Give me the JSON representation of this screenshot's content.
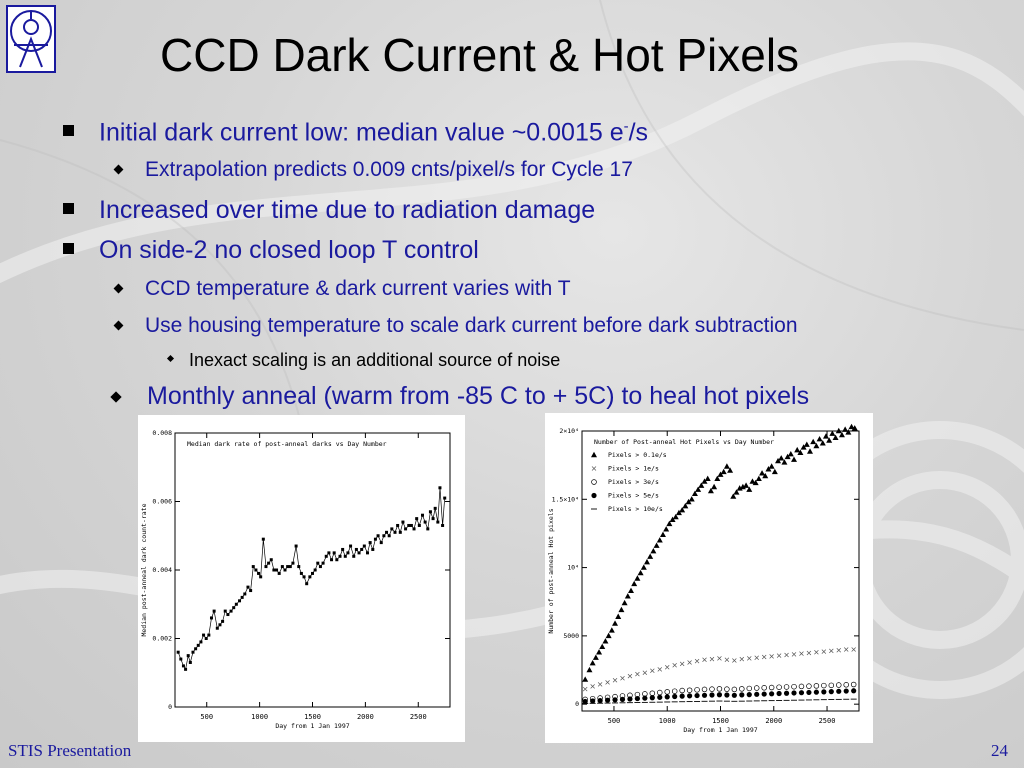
{
  "slide": {
    "title": "CCD Dark Current & Hot Pixels",
    "footer_left": "STIS Presentation",
    "page_number": "24",
    "accent_color": "#1a1a9e"
  },
  "bullets": [
    {
      "level": 1,
      "pre": "Initial dark current low: median value ~0.0015 e",
      "sup": "-",
      "post": "/s"
    },
    {
      "level": 2,
      "text": "Extrapolation predicts 0.009 cnts/pixel/s for Cycle 17"
    },
    {
      "level": 1,
      "text": "Increased over time due to radiation damage"
    },
    {
      "level": 1,
      "text": "On side-2  no closed loop T control"
    },
    {
      "level": 2,
      "text": "CCD temperature & dark current varies with T"
    },
    {
      "level": 2,
      "text": "Use housing temperature to scale dark current before dark subtraction"
    },
    {
      "level": 3,
      "text": "Inexact scaling is an additional source of noise"
    },
    {
      "level": 2,
      "text": " Monthly anneal (warm from -85 C to + 5C) to heal hot pixels"
    }
  ],
  "chart_data": [
    {
      "type": "line",
      "title": "Median dark rate of post-anneal darks vs Day Number",
      "xlabel": "Day from 1 Jan 1997",
      "ylabel": "Median post-anneal dark count-rate",
      "xlim": [
        200,
        2800
      ],
      "ylim": [
        0,
        0.008
      ],
      "xticks": [
        500,
        1000,
        1500,
        2000,
        2500
      ],
      "yticks": [
        0,
        0.002,
        0.004,
        0.006,
        0.008
      ],
      "ytick_labels": [
        "0",
        "0.002",
        "0.004",
        "0.006",
        "0.008"
      ],
      "series": [
        {
          "x": [
            230,
            255,
            280,
            300,
            325,
            345,
            370,
            395,
            420,
            445,
            470,
            495,
            520,
            545,
            570,
            600,
            625,
            650,
            675,
            700,
            730,
            755,
            780,
            810,
            835,
            860,
            890,
            915,
            940,
            965,
            990,
            1010,
            1035,
            1060,
            1085,
            1110,
            1135,
            1160,
            1185,
            1215,
            1240,
            1265,
            1290,
            1315,
            1345,
            1370,
            1395,
            1420,
            1445,
            1475,
            1500,
            1525,
            1550,
            1575,
            1600,
            1630,
            1655,
            1680,
            1705,
            1730,
            1760,
            1785,
            1810,
            1835,
            1860,
            1890,
            1915,
            1940,
            1965,
            1990,
            2020,
            2045,
            2070,
            2095,
            2120,
            2150,
            2175,
            2200,
            2225,
            2250,
            2280,
            2305,
            2330,
            2355,
            2380,
            2410,
            2435,
            2460,
            2485,
            2510,
            2540,
            2565,
            2590,
            2615,
            2640,
            2660,
            2685,
            2705,
            2730,
            2750
          ],
          "y": [
            0.0016,
            0.0014,
            0.0012,
            0.0011,
            0.0015,
            0.0013,
            0.0016,
            0.0017,
            0.0018,
            0.0019,
            0.0021,
            0.002,
            0.0021,
            0.0026,
            0.0028,
            0.0023,
            0.0024,
            0.0025,
            0.0028,
            0.0027,
            0.0028,
            0.0029,
            0.003,
            0.0031,
            0.0032,
            0.0033,
            0.0035,
            0.0034,
            0.0041,
            0.004,
            0.0039,
            0.0038,
            0.0049,
            0.0041,
            0.0042,
            0.0043,
            0.004,
            0.004,
            0.0039,
            0.0041,
            0.004,
            0.0041,
            0.0041,
            0.0042,
            0.0047,
            0.0041,
            0.0039,
            0.0038,
            0.0036,
            0.0038,
            0.0039,
            0.004,
            0.0042,
            0.0041,
            0.0042,
            0.0044,
            0.0045,
            0.0043,
            0.0045,
            0.0043,
            0.0044,
            0.0046,
            0.0044,
            0.0045,
            0.0047,
            0.0044,
            0.0046,
            0.0045,
            0.0046,
            0.0047,
            0.0045,
            0.0048,
            0.0046,
            0.0049,
            0.005,
            0.0048,
            0.005,
            0.0051,
            0.005,
            0.0052,
            0.0051,
            0.0053,
            0.0051,
            0.0054,
            0.0052,
            0.0053,
            0.0053,
            0.0052,
            0.0055,
            0.0053,
            0.0056,
            0.0054,
            0.0052,
            0.0057,
            0.0055,
            0.0058,
            0.0054,
            0.0064,
            0.0053,
            0.0061
          ]
        }
      ]
    },
    {
      "type": "scatter",
      "title": "Number of Post-anneal Hot Pixels vs Day Number",
      "xlabel": "Day from 1 Jan 1997",
      "ylabel": "Number of post-anneal Hot pixels",
      "xlim": [
        200,
        2800
      ],
      "ylim": [
        -500,
        20000
      ],
      "xticks": [
        500,
        1000,
        1500,
        2000,
        2500
      ],
      "yticks": [
        0,
        5000,
        10000,
        15000,
        20000
      ],
      "ytick_labels": [
        "0",
        "5000",
        "10⁴",
        "1.5×10⁴",
        "2×10⁴"
      ],
      "legend": "top-left",
      "series": [
        {
          "name": "Pixels > 0.1e/s",
          "marker": "triangle",
          "x": [
            230,
            270,
            300,
            330,
            360,
            390,
            420,
            450,
            480,
            510,
            540,
            570,
            600,
            630,
            660,
            690,
            720,
            750,
            780,
            810,
            840,
            870,
            900,
            930,
            960,
            990,
            1020,
            1050,
            1080,
            1110,
            1140,
            1170,
            1200,
            1230,
            1260,
            1290,
            1320,
            1350,
            1380,
            1410,
            1440,
            1470,
            1500,
            1530,
            1560,
            1590,
            1620,
            1650,
            1680,
            1710,
            1740,
            1770,
            1800,
            1830,
            1860,
            1890,
            1920,
            1950,
            1980,
            2010,
            2040,
            2070,
            2100,
            2130,
            2160,
            2190,
            2220,
            2250,
            2280,
            2310,
            2340,
            2370,
            2400,
            2430,
            2460,
            2490,
            2520,
            2550,
            2580,
            2610,
            2640,
            2670,
            2700,
            2730,
            2760
          ],
          "y": [
            1800,
            2500,
            3000,
            3400,
            3800,
            4200,
            4600,
            5000,
            5400,
            5900,
            6400,
            6900,
            7400,
            7900,
            8300,
            8800,
            9200,
            9600,
            10000,
            10400,
            10800,
            11200,
            11600,
            12000,
            12400,
            12800,
            13200,
            13500,
            13700,
            14000,
            14200,
            14500,
            14800,
            15000,
            15400,
            15700,
            16000,
            16300,
            16500,
            15600,
            15900,
            16500,
            16800,
            17000,
            17400,
            17100,
            15200,
            15500,
            15800,
            15900,
            16000,
            15700,
            16300,
            16200,
            16500,
            16900,
            16700,
            17200,
            17400,
            17000,
            17800,
            18000,
            17700,
            18100,
            18300,
            17900,
            18600,
            18400,
            18800,
            19000,
            18500,
            19200,
            18900,
            19400,
            19100,
            19600,
            19300,
            19800,
            19500,
            20000,
            19700,
            20100,
            19900,
            20300,
            20200
          ]
        },
        {
          "name": "Pixels > 1e/s",
          "marker": "cross",
          "x": [
            230,
            300,
            370,
            440,
            510,
            580,
            650,
            720,
            790,
            860,
            930,
            1000,
            1070,
            1140,
            1210,
            1280,
            1350,
            1420,
            1490,
            1560,
            1630,
            1700,
            1770,
            1840,
            1910,
            1980,
            2050,
            2120,
            2190,
            2260,
            2330,
            2400,
            2470,
            2540,
            2610,
            2680,
            2750
          ],
          "y": [
            1100,
            1300,
            1450,
            1600,
            1750,
            1900,
            2050,
            2200,
            2300,
            2450,
            2550,
            2700,
            2850,
            2950,
            3050,
            3150,
            3250,
            3300,
            3350,
            3250,
            3200,
            3300,
            3350,
            3400,
            3450,
            3500,
            3550,
            3600,
            3650,
            3700,
            3750,
            3800,
            3850,
            3900,
            3950,
            4000,
            4000
          ]
        },
        {
          "name": "Pixels > 3e/s",
          "marker": "circle",
          "x": [
            230,
            300,
            370,
            440,
            510,
            580,
            650,
            720,
            790,
            860,
            930,
            1000,
            1070,
            1140,
            1210,
            1280,
            1350,
            1420,
            1490,
            1560,
            1630,
            1700,
            1770,
            1840,
            1910,
            1980,
            2050,
            2120,
            2190,
            2260,
            2330,
            2400,
            2470,
            2540,
            2610,
            2680,
            2750
          ],
          "y": [
            350,
            400,
            450,
            500,
            550,
            600,
            650,
            700,
            750,
            800,
            850,
            900,
            950,
            1000,
            1020,
            1050,
            1080,
            1100,
            1120,
            1100,
            1080,
            1120,
            1150,
            1180,
            1200,
            1220,
            1240,
            1260,
            1280,
            1300,
            1320,
            1340,
            1360,
            1380,
            1400,
            1420,
            1440
          ]
        },
        {
          "name": "Pixels > 5e/s",
          "marker": "dot",
          "x": [
            230,
            300,
            370,
            440,
            510,
            580,
            650,
            720,
            790,
            860,
            930,
            1000,
            1070,
            1140,
            1210,
            1280,
            1350,
            1420,
            1490,
            1560,
            1630,
            1700,
            1770,
            1840,
            1910,
            1980,
            2050,
            2120,
            2190,
            2260,
            2330,
            2400,
            2470,
            2540,
            2610,
            2680,
            2750
          ],
          "y": [
            200,
            230,
            260,
            290,
            320,
            350,
            380,
            410,
            440,
            470,
            500,
            530,
            560,
            590,
            610,
            630,
            650,
            670,
            690,
            670,
            650,
            680,
            700,
            720,
            740,
            760,
            780,
            800,
            820,
            840,
            860,
            880,
            900,
            920,
            940,
            960,
            980
          ]
        },
        {
          "name": "Pixels > 10e/s",
          "marker": "dash",
          "x": [
            230,
            300,
            370,
            440,
            510,
            580,
            650,
            720,
            790,
            860,
            930,
            1000,
            1070,
            1140,
            1210,
            1280,
            1350,
            1420,
            1490,
            1560,
            1630,
            1700,
            1770,
            1840,
            1910,
            1980,
            2050,
            2120,
            2190,
            2260,
            2330,
            2400,
            2470,
            2540,
            2610,
            2680,
            2750
          ],
          "y": [
            50,
            60,
            70,
            80,
            90,
            100,
            110,
            120,
            130,
            140,
            150,
            160,
            170,
            180,
            190,
            200,
            210,
            220,
            230,
            220,
            210,
            220,
            230,
            240,
            250,
            260,
            270,
            280,
            290,
            300,
            310,
            320,
            330,
            340,
            350,
            360,
            370
          ]
        }
      ]
    }
  ]
}
